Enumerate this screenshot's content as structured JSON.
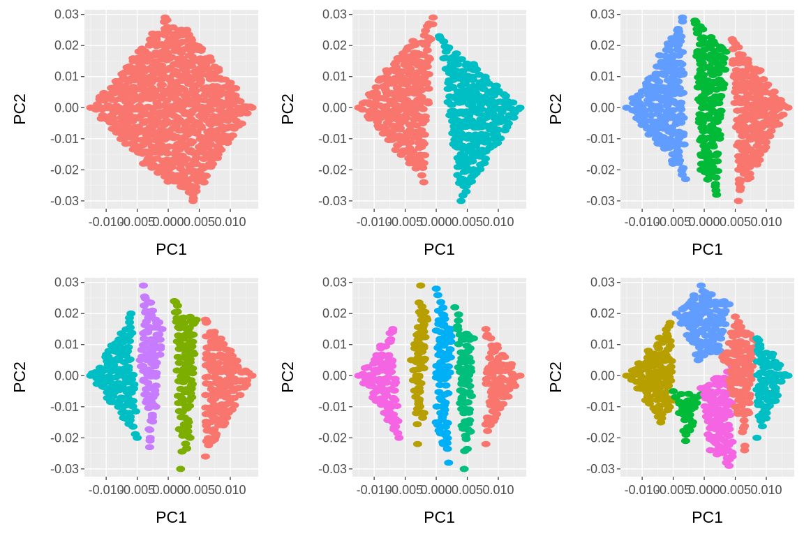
{
  "chart_data": [
    {
      "type": "scatter",
      "xlabel": "PC1",
      "ylabel": "PC2",
      "xticks": [
        -0.01,
        -0.005,
        0.0,
        0.005,
        0.01
      ],
      "xtick_labels": [
        "-0.010",
        "-0.005",
        "0.000",
        "0.005",
        "0.010"
      ],
      "yticks": [
        -0.03,
        -0.02,
        -0.01,
        0.0,
        0.01,
        0.02,
        0.03
      ],
      "ytick_labels": [
        "-0.03",
        "-0.02",
        "-0.01",
        "0.00",
        "0.01",
        "0.02",
        "0.03"
      ],
      "xlim": [
        -0.0135,
        0.0145
      ],
      "ylim": [
        -0.0325,
        0.0315
      ],
      "grid": true,
      "legend": "none",
      "clusters": [
        {
          "color": "#F8766D",
          "points": [
            [
              -0.0125,
              0.0
            ],
            [
              -0.0005,
              0.029
            ],
            [
              0.0135,
              0.0
            ],
            [
              0.004,
              -0.03
            ],
            [
              -0.003,
              0.02
            ],
            [
              0.006,
              0.015
            ],
            [
              -0.008,
              -0.006
            ],
            [
              0.008,
              -0.015
            ],
            [
              0.0,
              0.0
            ],
            [
              -0.004,
              -0.018
            ],
            [
              0.01,
              0.008
            ],
            [
              0.003,
              0.025
            ]
          ]
        }
      ]
    },
    {
      "type": "scatter",
      "xlabel": "PC1",
      "ylabel": "PC2",
      "xticks": [
        -0.01,
        -0.005,
        0.0,
        0.005,
        0.01
      ],
      "xtick_labels": [
        "-0.010",
        "-0.005",
        "0.000",
        "0.005",
        "0.010"
      ],
      "yticks": [
        -0.03,
        -0.02,
        -0.01,
        0.0,
        0.01,
        0.02,
        0.03
      ],
      "ytick_labels": [
        "-0.03",
        "-0.02",
        "-0.01",
        "0.00",
        "0.01",
        "0.02",
        "0.03"
      ],
      "xlim": [
        -0.0135,
        0.0145
      ],
      "ylim": [
        -0.0325,
        0.0315
      ],
      "grid": true,
      "legend": "none",
      "clusters": [
        {
          "color": "#F8766D",
          "points": [
            [
              -0.0125,
              0.0
            ],
            [
              -0.0005,
              0.029
            ],
            [
              -0.002,
              -0.024
            ],
            [
              -0.008,
              0.012
            ],
            [
              -0.005,
              -0.01
            ]
          ]
        },
        {
          "color": "#00BFC4",
          "points": [
            [
              0.0135,
              0.0
            ],
            [
              0.0005,
              0.023
            ],
            [
              0.004,
              -0.03
            ],
            [
              0.006,
              0.014
            ],
            [
              0.009,
              -0.012
            ]
          ]
        }
      ]
    },
    {
      "type": "scatter",
      "xlabel": "PC1",
      "ylabel": "PC2",
      "xticks": [
        -0.01,
        -0.005,
        0.0,
        0.005,
        0.01
      ],
      "xtick_labels": [
        "-0.010",
        "-0.005",
        "0.000",
        "0.005",
        "0.010"
      ],
      "yticks": [
        -0.03,
        -0.02,
        -0.01,
        0.0,
        0.01,
        0.02,
        0.03
      ],
      "ytick_labels": [
        "-0.03",
        "-0.02",
        "-0.01",
        "0.00",
        "0.01",
        "0.02",
        "0.03"
      ],
      "xlim": [
        -0.0135,
        0.0145
      ],
      "ylim": [
        -0.0325,
        0.0315
      ],
      "grid": true,
      "legend": "none",
      "clusters": [
        {
          "color": "#619CFF",
          "points": [
            [
              -0.0125,
              0.0
            ],
            [
              -0.0035,
              0.029
            ],
            [
              -0.003,
              -0.023
            ],
            [
              -0.008,
              0.01
            ],
            [
              -0.006,
              -0.012
            ]
          ]
        },
        {
          "color": "#00BA38",
          "points": [
            [
              -0.0015,
              0.028
            ],
            [
              0.002,
              -0.028
            ],
            [
              0.0005,
              0.0
            ],
            [
              0.0035,
              0.018
            ],
            [
              -0.0005,
              -0.02
            ]
          ]
        },
        {
          "color": "#F8766D",
          "points": [
            [
              0.0135,
              0.0
            ],
            [
              0.0045,
              0.022
            ],
            [
              0.0055,
              -0.03
            ],
            [
              0.009,
              0.012
            ],
            [
              0.008,
              -0.015
            ]
          ]
        }
      ]
    },
    {
      "type": "scatter",
      "xlabel": "PC1",
      "ylabel": "PC2",
      "xticks": [
        -0.01,
        -0.005,
        0.0,
        0.005,
        0.01
      ],
      "xtick_labels": [
        "-0.010",
        "-0.005",
        "0.000",
        "0.005",
        "0.010"
      ],
      "yticks": [
        -0.03,
        -0.02,
        -0.01,
        0.0,
        0.01,
        0.02,
        0.03
      ],
      "ytick_labels": [
        "-0.03",
        "-0.02",
        "-0.01",
        "0.00",
        "0.01",
        "0.02",
        "0.03"
      ],
      "xlim": [
        -0.0135,
        0.0145
      ],
      "ylim": [
        -0.0325,
        0.0315
      ],
      "grid": true,
      "legend": "none",
      "clusters": [
        {
          "color": "#00BFC4",
          "points": [
            [
              -0.0125,
              0.0
            ],
            [
              -0.006,
              0.02
            ],
            [
              -0.005,
              -0.02
            ],
            [
              -0.009,
              0.008
            ],
            [
              -0.008,
              -0.01
            ]
          ]
        },
        {
          "color": "#C77CFF",
          "points": [
            [
              -0.004,
              0.029
            ],
            [
              -0.003,
              -0.023
            ],
            [
              -0.001,
              0.015
            ],
            [
              -0.002,
              -0.01
            ],
            [
              -0.0045,
              0.005
            ]
          ]
        },
        {
          "color": "#7CAE00",
          "points": [
            [
              0.001,
              0.024
            ],
            [
              0.002,
              -0.03
            ],
            [
              0.0025,
              0.0
            ],
            [
              0.0045,
              0.018
            ],
            [
              0.0035,
              -0.02
            ]
          ]
        },
        {
          "color": "#F8766D",
          "points": [
            [
              0.0135,
              0.0
            ],
            [
              0.006,
              0.018
            ],
            [
              0.006,
              -0.026
            ],
            [
              0.01,
              0.008
            ],
            [
              0.009,
              -0.012
            ]
          ]
        }
      ]
    },
    {
      "type": "scatter",
      "xlabel": "PC1",
      "ylabel": "PC2",
      "xticks": [
        -0.01,
        -0.005,
        0.0,
        0.005,
        0.01
      ],
      "xtick_labels": [
        "-0.010",
        "-0.005",
        "0.000",
        "0.005",
        "0.010"
      ],
      "yticks": [
        -0.03,
        -0.02,
        -0.01,
        0.0,
        0.01,
        0.02,
        0.03
      ],
      "ytick_labels": [
        "-0.03",
        "-0.02",
        "-0.01",
        "0.00",
        "0.01",
        "0.02",
        "0.03"
      ],
      "xlim": [
        -0.0135,
        0.0145
      ],
      "ylim": [
        -0.0325,
        0.0315
      ],
      "grid": true,
      "legend": "none",
      "clusters": [
        {
          "color": "#F564E3",
          "points": [
            [
              -0.0125,
              0.0
            ],
            [
              -0.007,
              0.015
            ],
            [
              -0.006,
              -0.02
            ],
            [
              -0.009,
              0.006
            ],
            [
              -0.0085,
              -0.009
            ]
          ]
        },
        {
          "color": "#B79F00",
          "points": [
            [
              -0.0025,
              0.029
            ],
            [
              -0.003,
              -0.022
            ],
            [
              -0.004,
              0.005
            ],
            [
              -0.0015,
              0.018
            ],
            [
              -0.002,
              -0.012
            ]
          ]
        },
        {
          "color": "#00B0F6",
          "points": [
            [
              0.0,
              0.028
            ],
            [
              0.002,
              -0.028
            ],
            [
              0.001,
              0.0
            ],
            [
              0.0025,
              0.015
            ],
            [
              0.0,
              -0.015
            ]
          ]
        },
        {
          "color": "#00BF7D",
          "points": [
            [
              0.003,
              0.022
            ],
            [
              0.0045,
              -0.03
            ],
            [
              0.0045,
              0.0
            ],
            [
              0.006,
              0.012
            ],
            [
              0.0055,
              -0.018
            ]
          ]
        },
        {
          "color": "#F8766D",
          "points": [
            [
              0.0135,
              0.0
            ],
            [
              0.008,
              0.015
            ],
            [
              0.008,
              -0.022
            ],
            [
              0.011,
              0.006
            ],
            [
              0.01,
              -0.01
            ]
          ]
        }
      ]
    },
    {
      "type": "scatter",
      "xlabel": "PC1",
      "ylabel": "PC2",
      "xticks": [
        -0.01,
        -0.005,
        0.0,
        0.005,
        0.01
      ],
      "xtick_labels": [
        "-0.010",
        "-0.005",
        "0.000",
        "0.005",
        "0.010"
      ],
      "yticks": [
        -0.03,
        -0.02,
        -0.01,
        0.0,
        0.01,
        0.02,
        0.03
      ],
      "ytick_labels": [
        "-0.03",
        "-0.02",
        "-0.01",
        "0.00",
        "0.01",
        "0.02",
        "0.03"
      ],
      "xlim": [
        -0.0135,
        0.0145
      ],
      "ylim": [
        -0.0325,
        0.0315
      ],
      "grid": true,
      "legend": "none",
      "clusters": [
        {
          "color": "#B79F00",
          "points": [
            [
              -0.0125,
              0.0
            ],
            [
              -0.0055,
              0.017
            ],
            [
              -0.007,
              -0.015
            ],
            [
              -0.005,
              -0.008
            ],
            [
              -0.009,
              0.008
            ]
          ]
        },
        {
          "color": "#00BA38",
          "points": [
            [
              -0.005,
              -0.005
            ],
            [
              -0.0005,
              -0.006
            ],
            [
              -0.003,
              -0.021
            ],
            [
              -0.002,
              -0.016
            ],
            [
              -0.004,
              -0.012
            ]
          ]
        },
        {
          "color": "#619CFF",
          "points": [
            [
              -0.0045,
              0.02
            ],
            [
              -0.0005,
              0.029
            ],
            [
              0.004,
              0.023
            ],
            [
              0.0025,
              0.008
            ],
            [
              -0.001,
              0.005
            ]
          ]
        },
        {
          "color": "#F564E3",
          "points": [
            [
              -0.0005,
              -0.004
            ],
            [
              0.0045,
              0.003
            ],
            [
              0.004,
              -0.029
            ],
            [
              0.0045,
              -0.026
            ],
            [
              0.001,
              -0.024
            ]
          ]
        },
        {
          "color": "#F8766D",
          "points": [
            [
              0.005,
              0.019
            ],
            [
              0.0085,
              0.011
            ],
            [
              0.0065,
              -0.024
            ],
            [
              0.003,
              0.006
            ],
            [
              0.005,
              -0.01
            ]
          ]
        },
        {
          "color": "#00BFC4",
          "points": [
            [
              0.0135,
              0.0
            ],
            [
              0.0085,
              0.012
            ],
            [
              0.0085,
              -0.02
            ],
            [
              0.011,
              0.007
            ],
            [
              0.01,
              -0.012
            ]
          ]
        }
      ]
    }
  ]
}
